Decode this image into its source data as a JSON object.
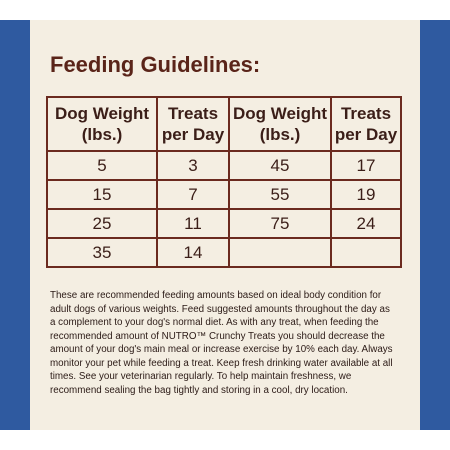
{
  "title": "Feeding Guidelines:",
  "table": {
    "headers": [
      {
        "line1": "Dog Weight",
        "line2": "(lbs.)"
      },
      {
        "line1": "Treats",
        "line2": "per Day"
      },
      {
        "line1": "Dog Weight",
        "line2": "(lbs.)"
      },
      {
        "line1": "Treats",
        "line2": "per Day"
      }
    ],
    "rows": [
      [
        "5",
        "3",
        "45",
        "17"
      ],
      [
        "15",
        "7",
        "55",
        "19"
      ],
      [
        "25",
        "11",
        "75",
        "24"
      ],
      [
        "35",
        "14",
        "",
        ""
      ]
    ]
  },
  "note_lines": [
    "These are recommended feeding amounts based on ideal body condition for",
    "adult dogs of various weights. Feed suggested amounts throughout the day as",
    "a complement to your dog's normal diet. As with any treat, when feeding the",
    "recommended amount of NUTRO™ Crunchy Treats you should decrease the",
    "amount of your dog's main meal or increase exercise by 10% each day. Always",
    "monitor your pet while feeding a treat. Keep fresh drinking water available at all",
    "times. See your veterinarian regularly. To help maintain freshness, we",
    "recommend sealing the bag tightly and storing in a cool, dry location."
  ],
  "colors": {
    "side_band": "#2f5aa0",
    "panel": "#f4eee2",
    "title": "#5a2419",
    "table_border": "#6b2a1f"
  }
}
